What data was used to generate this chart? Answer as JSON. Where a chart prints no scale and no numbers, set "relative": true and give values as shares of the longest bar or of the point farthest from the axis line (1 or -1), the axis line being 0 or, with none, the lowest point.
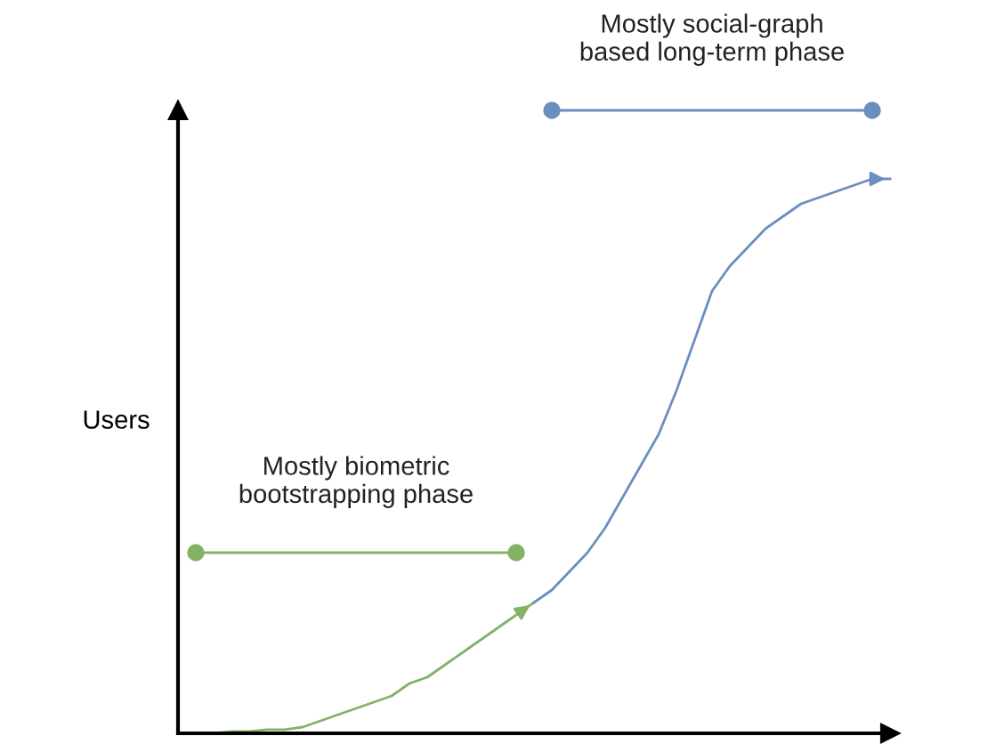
{
  "chart_data": {
    "type": "line",
    "relative": true,
    "ylabel": "Users",
    "grid": false,
    "categories": [
      null,
      null,
      null,
      null,
      null,
      null,
      null,
      null,
      null,
      null,
      null,
      null,
      null,
      null,
      null,
      null,
      null,
      null,
      null,
      null,
      null,
      null,
      null,
      null,
      null,
      null,
      null,
      null,
      null,
      null,
      null,
      null,
      null,
      null,
      null,
      null,
      null,
      null,
      null,
      null,
      null
    ],
    "series": [
      {
        "color": "#82b366",
        "marker": "none",
        "values": [
          0,
          0,
          0,
          0.003,
          0.003,
          0.006,
          0.006,
          0.01,
          0.02,
          0.03,
          0.04,
          0.05,
          0.06,
          0.08,
          0.09,
          0.11,
          0.13,
          0.15,
          0.17,
          0.19,
          0.21,
          null,
          null,
          null,
          null,
          null,
          null,
          null,
          null,
          null,
          null,
          null,
          null,
          null,
          null,
          null,
          null,
          null,
          null,
          null,
          null
        ]
      },
      {
        "color": "#6c8ebf",
        "marker": "none",
        "values": [
          null,
          null,
          null,
          null,
          null,
          null,
          null,
          null,
          null,
          null,
          null,
          null,
          null,
          null,
          null,
          null,
          null,
          null,
          null,
          null,
          0.21,
          0.23,
          0.26,
          0.29,
          0.33,
          0.38,
          0.43,
          0.48,
          0.55,
          0.63,
          0.71,
          0.75,
          0.78,
          0.81,
          0.83,
          0.85,
          0.86,
          0.87,
          0.88,
          0.89,
          0.89
        ]
      },
      {
        "color": "#82b366",
        "marker": "circle",
        "values": [
          null,
          0.29,
          null,
          null,
          null,
          null,
          null,
          null,
          null,
          null,
          null,
          null,
          null,
          null,
          null,
          null,
          null,
          null,
          null,
          0.29,
          null,
          null,
          null,
          null,
          null,
          null,
          null,
          null,
          null,
          null,
          null,
          null,
          null,
          null,
          null,
          null,
          null,
          null,
          null,
          null,
          null
        ]
      },
      {
        "color": "#6c8ebf",
        "marker": "circle",
        "values": [
          null,
          null,
          null,
          null,
          null,
          null,
          null,
          null,
          null,
          null,
          null,
          null,
          null,
          null,
          null,
          null,
          null,
          null,
          null,
          null,
          null,
          1,
          null,
          null,
          null,
          null,
          null,
          null,
          null,
          null,
          null,
          null,
          null,
          null,
          null,
          null,
          null,
          null,
          null,
          1,
          null
        ]
      }
    ],
    "annotations": [
      "Mostly biometric\nbootstrapping phase",
      "Mostly social-graph\nbased long-term phase"
    ]
  }
}
